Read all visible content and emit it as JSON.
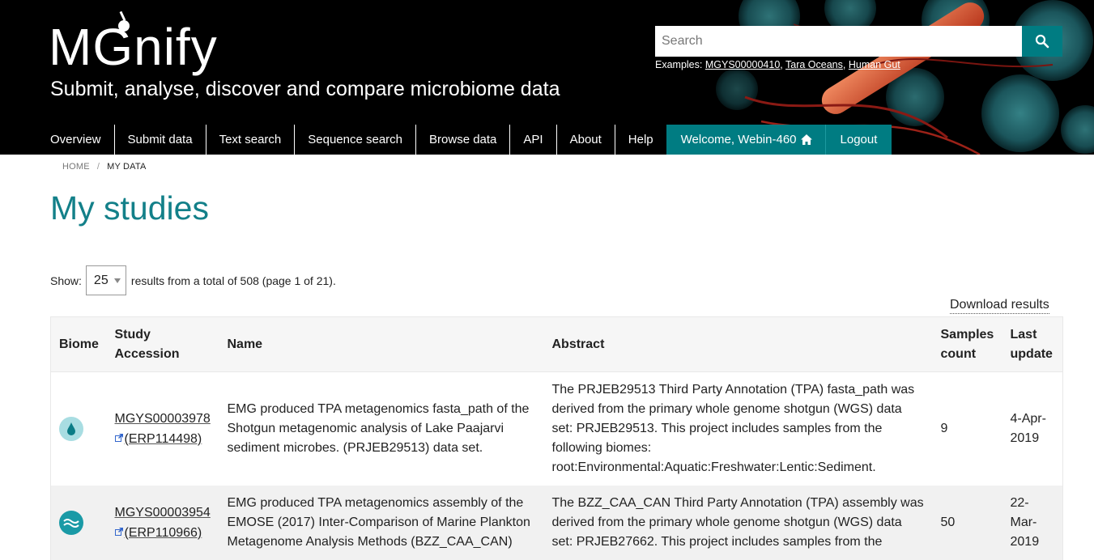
{
  "header": {
    "logo_text": "MGnify",
    "tagline": "Submit, analyse, discover and compare microbiome data",
    "search": {
      "placeholder": "Search"
    },
    "examples": {
      "label": "Examples:",
      "links": [
        "MGYS00000410",
        "Tara Oceans",
        "Human Gut"
      ]
    },
    "nav": [
      "Overview",
      "Submit data",
      "Text search",
      "Sequence search",
      "Browse data",
      "API",
      "About",
      "Help"
    ],
    "welcome": "Welcome, Webin-460",
    "logout": "Logout"
  },
  "breadcrumb": {
    "home": "HOME",
    "current": "MY DATA"
  },
  "page_title": "My studies",
  "controls": {
    "show_label": "Show:",
    "page_size": "25",
    "results_text": "results from a total of 508 (page 1 of 21).",
    "download": "Download results"
  },
  "table": {
    "columns": [
      "Biome",
      "Study Accession",
      "Name",
      "Abstract",
      "Samples count",
      "Last update"
    ],
    "rows": [
      {
        "biome_icon": "freshwater-sediment-icon",
        "accession": "MGYS00003978",
        "ext_accession": "(ERP114498)",
        "name": "EMG produced TPA metagenomics fasta_path of the Shotgun metagenomic analysis of Lake Paajarvi sediment microbes. (PRJEB29513) data set.",
        "abstract": "The PRJEB29513 Third Party Annotation (TPA) fasta_path was derived from the primary whole genome shotgun (WGS) data set: PRJEB29513. This project includes samples from the following biomes: root:Environmental:Aquatic:Freshwater:Lentic:Sediment.",
        "samples": "9",
        "updated": "4-Apr-2019"
      },
      {
        "biome_icon": "marine-icon",
        "accession": "MGYS00003954",
        "ext_accession": "(ERP110966)",
        "name": "EMG produced TPA metagenomics assembly of the EMOSE (2017) Inter-Comparison of Marine Plankton Metagenome Analysis Methods (BZZ_CAA_CAN)",
        "abstract": "The BZZ_CAA_CAN Third Party Annotation (TPA) assembly was derived from the primary whole genome shotgun (WGS) data set: PRJEB27662. This project includes samples from the",
        "samples": "50",
        "updated": "22-Mar-2019"
      }
    ]
  },
  "colors": {
    "brand_teal": "#007c82",
    "title_teal": "#138089",
    "header_bg": "#000000"
  }
}
